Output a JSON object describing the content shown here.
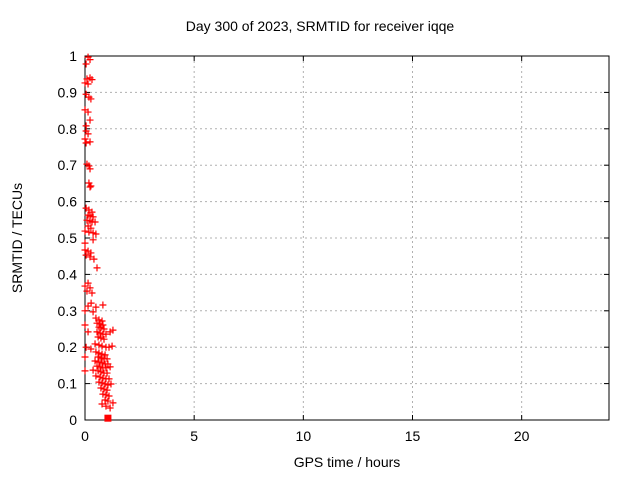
{
  "chart_data": {
    "type": "scatter",
    "title": "Day 300 of 2023, SRMTID for receiver iqqe",
    "xlabel": "GPS time / hours",
    "ylabel": "SRMTID / TECUs",
    "xlim": [
      0,
      24
    ],
    "ylim": [
      0,
      1
    ],
    "xticks": {
      "values": [
        0,
        5,
        10,
        15,
        20
      ],
      "labels": [
        "0",
        "5",
        "10",
        "15",
        "20"
      ]
    },
    "yticks": {
      "values": [
        0,
        0.1,
        0.2,
        0.3,
        0.4,
        0.5,
        0.6,
        0.7,
        0.8,
        0.9,
        1
      ],
      "labels": [
        "0",
        "0.1",
        "0.2",
        "0.3",
        "0.4",
        "0.5",
        "0.6",
        "0.7",
        "0.8",
        "0.9",
        "1"
      ]
    },
    "grid": true,
    "legend": "none",
    "colors": {
      "marker": "#ff0000",
      "grid": "#b0b0b0",
      "axis": "#000000",
      "background": "#ffffff"
    },
    "series": [
      {
        "name": "srmtid-points",
        "marker": "plus",
        "color": "#ff0000",
        "points": [
          [
            0.14,
            0.997
          ],
          [
            0.23,
            0.99
          ],
          [
            0.05,
            0.978
          ],
          [
            0.23,
            0.94
          ],
          [
            0.09,
            0.937
          ],
          [
            0.32,
            0.935
          ],
          [
            0.0,
            0.926
          ],
          [
            0.14,
            0.923
          ],
          [
            0.05,
            0.895
          ],
          [
            0.18,
            0.887
          ],
          [
            0.27,
            0.882
          ],
          [
            0.0,
            0.852
          ],
          [
            0.14,
            0.846
          ],
          [
            0.23,
            0.824
          ],
          [
            0.05,
            0.808
          ],
          [
            0.05,
            0.794
          ],
          [
            0.14,
            0.786
          ],
          [
            0.0,
            0.772
          ],
          [
            0.23,
            0.764
          ],
          [
            0.05,
            0.761
          ],
          [
            0.09,
            0.703
          ],
          [
            0.18,
            0.698
          ],
          [
            0.23,
            0.69
          ],
          [
            0.18,
            0.651
          ],
          [
            0.27,
            0.643
          ],
          [
            0.23,
            0.64
          ],
          [
            0.05,
            0.582
          ],
          [
            0.18,
            0.577
          ],
          [
            0.32,
            0.571
          ],
          [
            0.14,
            0.563
          ],
          [
            0.23,
            0.56
          ],
          [
            0.37,
            0.558
          ],
          [
            0.09,
            0.549
          ],
          [
            0.23,
            0.547
          ],
          [
            0.32,
            0.544
          ],
          [
            0.46,
            0.544
          ],
          [
            0.14,
            0.533
          ],
          [
            0.27,
            0.527
          ],
          [
            0.0,
            0.519
          ],
          [
            0.18,
            0.516
          ],
          [
            0.37,
            0.514
          ],
          [
            0.5,
            0.511
          ],
          [
            0.37,
            0.495
          ],
          [
            0.0,
            0.486
          ],
          [
            0.0,
            0.467
          ],
          [
            0.14,
            0.464
          ],
          [
            0.27,
            0.459
          ],
          [
            0.05,
            0.453
          ],
          [
            0.23,
            0.448
          ],
          [
            0.41,
            0.442
          ],
          [
            0.55,
            0.418
          ],
          [
            0.14,
            0.376
          ],
          [
            0.0,
            0.368
          ],
          [
            0.23,
            0.363
          ],
          [
            0.09,
            0.354
          ],
          [
            0.32,
            0.349
          ],
          [
            0.28,
            0.321
          ],
          [
            0.82,
            0.316
          ],
          [
            0.14,
            0.313
          ],
          [
            0.5,
            0.31
          ],
          [
            0.0,
            0.3
          ],
          [
            0.37,
            0.297
          ],
          [
            0.5,
            0.28
          ],
          [
            0.64,
            0.275
          ],
          [
            0.78,
            0.272
          ],
          [
            0.55,
            0.266
          ],
          [
            0.69,
            0.264
          ],
          [
            0.82,
            0.261
          ],
          [
            0.0,
            0.261
          ],
          [
            0.64,
            0.255
          ],
          [
            0.73,
            0.253
          ],
          [
            0.87,
            0.25
          ],
          [
            1.28,
            0.247
          ],
          [
            0.14,
            0.242
          ],
          [
            0.55,
            0.242
          ],
          [
            1.15,
            0.242
          ],
          [
            0.69,
            0.239
          ],
          [
            0.82,
            0.236
          ],
          [
            0.96,
            0.236
          ],
          [
            0.6,
            0.228
          ],
          [
            0.73,
            0.225
          ],
          [
            0.87,
            0.222
          ],
          [
            0.46,
            0.209
          ],
          [
            0.64,
            0.206
          ],
          [
            0.78,
            0.203
          ],
          [
            1.24,
            0.203
          ],
          [
            0.96,
            0.2
          ],
          [
            1.1,
            0.2
          ],
          [
            0.05,
            0.2
          ],
          [
            0.27,
            0.195
          ],
          [
            0.5,
            0.187
          ],
          [
            0.64,
            0.184
          ],
          [
            0.78,
            0.181
          ],
          [
            0.92,
            0.179
          ],
          [
            0.0,
            0.173
          ],
          [
            0.6,
            0.173
          ],
          [
            0.73,
            0.17
          ],
          [
            0.87,
            0.168
          ],
          [
            1.01,
            0.168
          ],
          [
            0.46,
            0.162
          ],
          [
            0.64,
            0.159
          ],
          [
            0.78,
            0.157
          ],
          [
            0.92,
            0.154
          ],
          [
            1.05,
            0.154
          ],
          [
            0.55,
            0.148
          ],
          [
            0.69,
            0.146
          ],
          [
            1.15,
            0.146
          ],
          [
            0.82,
            0.143
          ],
          [
            0.96,
            0.143
          ],
          [
            0.37,
            0.137
          ],
          [
            0.6,
            0.135
          ],
          [
            0.0,
            0.135
          ],
          [
            0.73,
            0.132
          ],
          [
            0.87,
            0.129
          ],
          [
            1.01,
            0.129
          ],
          [
            0.5,
            0.121
          ],
          [
            0.69,
            0.118
          ],
          [
            0.82,
            0.115
          ],
          [
            0.96,
            0.113
          ],
          [
            1.1,
            0.113
          ],
          [
            0.64,
            0.104
          ],
          [
            0.78,
            0.102
          ],
          [
            0.92,
            0.099
          ],
          [
            1.19,
            0.099
          ],
          [
            1.05,
            0.096
          ],
          [
            0.73,
            0.088
          ],
          [
            0.87,
            0.085
          ],
          [
            1.01,
            0.082
          ],
          [
            0.82,
            0.071
          ],
          [
            0.96,
            0.069
          ],
          [
            1.1,
            0.066
          ],
          [
            0.92,
            0.055
          ],
          [
            1.05,
            0.052
          ],
          [
            1.28,
            0.047
          ],
          [
            0.78,
            0.044
          ],
          [
            0.96,
            0.038
          ],
          [
            1.15,
            0.033
          ]
        ]
      },
      {
        "name": "srmtid-flag-point",
        "marker": "filled-square",
        "color": "#ff0000",
        "points": [
          [
            1.05,
            0.005
          ]
        ]
      }
    ]
  }
}
